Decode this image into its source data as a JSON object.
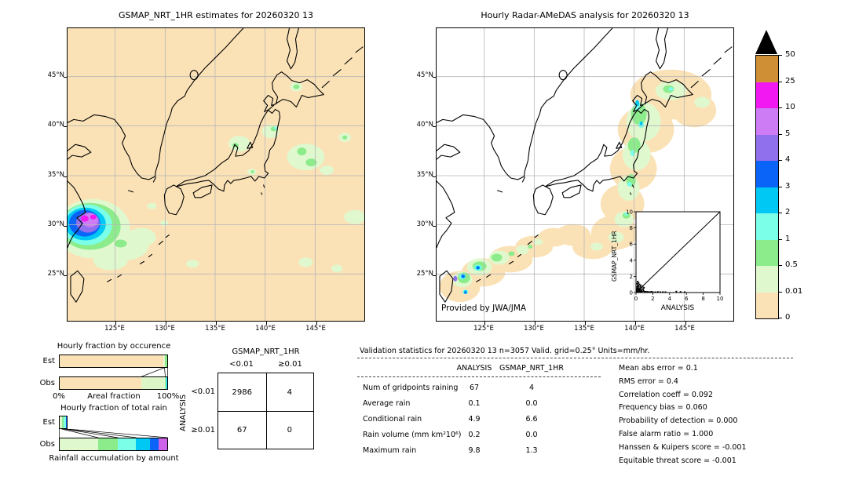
{
  "left_map": {
    "title": "GSMAP_NRT_1HR estimates for 20260320 13"
  },
  "right_map": {
    "title": "Hourly Radar-AMeDAS analysis for 20260320 13",
    "credit": "Provided by JWA/JMA"
  },
  "axes": {
    "lat_ticks": [
      "45°N",
      "40°N",
      "35°N",
      "30°N",
      "25°N"
    ],
    "lon_ticks": [
      "125°E",
      "130°E",
      "135°E",
      "140°E",
      "145°E"
    ]
  },
  "colorbar": {
    "units": "mm/hr",
    "tick_labels": [
      "50",
      "25",
      "10",
      "5",
      "4",
      "3",
      "2",
      "1",
      "0.5",
      "0.01",
      "0"
    ],
    "segment_colors_top_to_bottom": [
      "#CE8F35",
      "#F218F2",
      "#CE7CF6",
      "#9170EE",
      "#0A64F8",
      "#00C8F5",
      "#7CFFE8",
      "#8CEC8C",
      "#E0F8CE",
      "#FBE2B6"
    ],
    "over_color": "#000000"
  },
  "inset": {
    "xlabel": "ANALYSIS",
    "ylabel": "GSMAP_NRT_1HR",
    "tick_labels": [
      "0",
      "2",
      "4",
      "6",
      "8",
      "10"
    ]
  },
  "occurrence": {
    "title": "Hourly fraction by occurence",
    "row_labels": [
      "Est",
      "Obs"
    ],
    "x_min_label": "0%",
    "x_max_label": "100%",
    "xlabel": "Areal fraction",
    "est_segments": [
      {
        "color": "#FBE2B6",
        "pct": 96.3
      },
      {
        "color": "#E0F8CE",
        "pct": 1.7
      },
      {
        "color": "#8CEC8C",
        "pct": 2.0
      }
    ],
    "obs_segments": [
      {
        "color": "#FBE2B6",
        "pct": 76.0
      },
      {
        "color": "#DDF6C8",
        "pct": 21.5
      },
      {
        "color": "#8CEC8C",
        "pct": 1.2
      },
      {
        "color": "#7CFFE8",
        "pct": 0.6
      },
      {
        "color": "#00C8F5",
        "pct": 0.7
      }
    ]
  },
  "total_rain": {
    "title": "Hourly fraction of total rain",
    "row_labels": [
      "Est",
      "Obs"
    ],
    "xlabel": "Rainfall accumulation by amount",
    "est_segments": [
      {
        "color": "#E0F8CE",
        "pct": 33.0
      },
      {
        "color": "#8CEC8C",
        "pct": 28.0
      },
      {
        "color": "#7CFFE8",
        "pct": 23.0
      },
      {
        "color": "#00C8F5",
        "pct": 10.0
      },
      {
        "color": "#0A64F8",
        "pct": 6.0
      }
    ],
    "obs_segments": [
      {
        "color": "#E0F8CE",
        "pct": 36.0
      },
      {
        "color": "#8CEC8C",
        "pct": 18.0
      },
      {
        "color": "#7CFFE8",
        "pct": 17.0
      },
      {
        "color": "#00C8F5",
        "pct": 13.0
      },
      {
        "color": "#0A64F8",
        "pct": 8.0
      },
      {
        "color": "#CC63E8",
        "pct": 8.0
      }
    ]
  },
  "contingency": {
    "col_group": "GSMAP_NRT_1HR",
    "row_group": "ANALYSIS",
    "col_labels": [
      "<0.01",
      "≥0.01"
    ],
    "row_labels": [
      "<0.01",
      "≥0.01"
    ],
    "values": [
      [
        "2986",
        "4"
      ],
      [
        "67",
        "0"
      ]
    ]
  },
  "validation": {
    "title": "Validation statistics for 20260320 13  n=3057 Valid. grid=0.25° Units=mm/hr.",
    "col_headers": [
      "ANALYSIS",
      "GSMAP_NRT_1HR"
    ],
    "rows": [
      {
        "label": "Num of gridpoints raining",
        "analysis": "67",
        "gsmap": "4"
      },
      {
        "label": "Average rain",
        "analysis": "0.1",
        "gsmap": "0.0"
      },
      {
        "label": "Conditional rain",
        "analysis": "4.9",
        "gsmap": "6.6"
      },
      {
        "label": "Rain volume (mm km²10⁶)",
        "analysis": "0.2",
        "gsmap": "0.0"
      },
      {
        "label": "Maximum rain",
        "analysis": "9.8",
        "gsmap": "1.3"
      }
    ],
    "scores": [
      {
        "label": "Mean abs error",
        "value": "0.1"
      },
      {
        "label": "RMS error",
        "value": "0.4"
      },
      {
        "label": "Correlation coeff",
        "value": "0.092"
      },
      {
        "label": "Frequency bias",
        "value": "0.060"
      },
      {
        "label": "Probability of detection",
        "value": "0.000"
      },
      {
        "label": "False alarm ratio",
        "value": "1.000"
      },
      {
        "label": "Hanssen & Kuipers score",
        "value": "-0.001"
      },
      {
        "label": "Equitable threat score",
        "value": "-0.001"
      }
    ]
  },
  "chart_data": [
    {
      "type": "heatmap",
      "name": "gsmap_precip_map",
      "title": "GSMAP_NRT_1HR estimates for 20260320 13",
      "units": "mm/hr",
      "lon_range": [
        120,
        150
      ],
      "lat_range": [
        22.5,
        48.5
      ],
      "contour_levels": [
        0,
        0.01,
        0.5,
        1,
        2,
        3,
        4,
        5,
        10,
        25,
        50
      ],
      "max_rain": 1.3,
      "raining_gridpoints": 4
    },
    {
      "type": "heatmap",
      "name": "radar_amedas_map",
      "title": "Hourly Radar-AMeDAS analysis for 20260320 13",
      "units": "mm/hr",
      "lon_range": [
        120,
        150
      ],
      "lat_range": [
        22.5,
        48.5
      ],
      "contour_levels": [
        0,
        0.01,
        0.5,
        1,
        2,
        3,
        4,
        5,
        10,
        25,
        50
      ],
      "max_rain": 9.8,
      "raining_gridpoints": 67
    },
    {
      "type": "scatter",
      "name": "inset_scatter",
      "xlabel": "ANALYSIS",
      "ylabel": "GSMAP_NRT_1HR",
      "xlim": [
        0,
        10
      ],
      "ylim": [
        0,
        10
      ],
      "diagonal": true,
      "points": [
        [
          0.05,
          0.1
        ],
        [
          0.1,
          0.05
        ],
        [
          0.15,
          0.2
        ],
        [
          0.2,
          0.1
        ],
        [
          0.25,
          0.05
        ],
        [
          0.3,
          0.15
        ],
        [
          0.1,
          0.3
        ],
        [
          0.2,
          0.25
        ],
        [
          0.05,
          0.4
        ],
        [
          0.15,
          0.5
        ],
        [
          0.3,
          0.35
        ],
        [
          0.4,
          0.2
        ],
        [
          0.5,
          0.1
        ],
        [
          0.45,
          0.3
        ],
        [
          0.6,
          0.15
        ],
        [
          0.35,
          0.5
        ],
        [
          0.25,
          0.6
        ],
        [
          0.5,
          0.45
        ],
        [
          0.65,
          0.3
        ],
        [
          0.7,
          0.1
        ],
        [
          0.15,
          0.7
        ],
        [
          0.3,
          0.8
        ],
        [
          0.5,
          0.7
        ],
        [
          0.2,
          0.9
        ],
        [
          0.4,
          1.0
        ],
        [
          0.15,
          1.1
        ],
        [
          0.3,
          1.2
        ],
        [
          0.2,
          1.35
        ],
        [
          0.55,
          0.9
        ],
        [
          0.7,
          0.6
        ],
        [
          0.85,
          0.4
        ],
        [
          0.9,
          0.2
        ],
        [
          1.0,
          0.1
        ],
        [
          1.1,
          0.05
        ],
        [
          0.8,
          0.8
        ],
        [
          0.95,
          0.6
        ],
        [
          1.2,
          0.1
        ],
        [
          1.4,
          0.08
        ],
        [
          1.6,
          0.05
        ],
        [
          1.8,
          0.1
        ],
        [
          2.0,
          0.06
        ],
        [
          2.3,
          0.05
        ],
        [
          2.6,
          0.08
        ],
        [
          2.9,
          0.05
        ],
        [
          3.2,
          0.06
        ],
        [
          3.5,
          0.05
        ],
        [
          4.8,
          0.12
        ],
        [
          5.3,
          0.08
        ],
        [
          5.8,
          0.05
        ]
      ]
    },
    {
      "type": "bar",
      "name": "hourly_fraction_by_occurrence",
      "categories": [
        "Est",
        "Obs"
      ],
      "series": [
        {
          "name": "Est",
          "values_pct": [
            96.3,
            1.7,
            2.0
          ]
        },
        {
          "name": "Obs",
          "values_pct": [
            76.0,
            21.5,
            1.2,
            0.6,
            0.7
          ]
        }
      ],
      "xlabel": "Areal fraction",
      "xlim_labels": [
        "0%",
        "100%"
      ]
    },
    {
      "type": "bar",
      "name": "hourly_fraction_of_total_rain",
      "categories": [
        "Est",
        "Obs"
      ],
      "series": [
        {
          "name": "Est",
          "total_pct": 7.8,
          "values_pct": [
            2.6,
            2.2,
            1.8,
            0.8,
            0.4
          ]
        },
        {
          "name": "Obs",
          "total_pct": 100,
          "values_pct": [
            36,
            18,
            17,
            13,
            8,
            8
          ]
        }
      ],
      "xlabel": "Rainfall accumulation by amount"
    },
    {
      "type": "table",
      "name": "contingency_table",
      "col_group": "GSMAP_NRT_1HR",
      "row_group": "ANALYSIS",
      "columns": [
        "<0.01",
        "≥0.01"
      ],
      "rows": [
        "<0.01",
        "≥0.01"
      ],
      "values": [
        [
          2986,
          4
        ],
        [
          67,
          0
        ]
      ]
    },
    {
      "type": "table",
      "name": "validation_statistics",
      "title": "Validation statistics for 20260320 13  n=3057 Valid. grid=0.25° Units=mm/hr.",
      "columns": [
        "ANALYSIS",
        "GSMAP_NRT_1HR"
      ],
      "rows": [
        [
          "Num of gridpoints raining",
          67,
          4
        ],
        [
          "Average rain",
          0.1,
          0.0
        ],
        [
          "Conditional rain",
          4.9,
          6.6
        ],
        [
          "Rain volume (mm km²10⁶)",
          0.2,
          0.0
        ],
        [
          "Maximum rain",
          9.8,
          1.3
        ]
      ],
      "scores": {
        "Mean abs error": 0.1,
        "RMS error": 0.4,
        "Correlation coeff": 0.092,
        "Frequency bias": 0.06,
        "Probability of detection": 0.0,
        "False alarm ratio": 1.0,
        "Hanssen & Kuipers score": -0.001,
        "Equitable threat score": -0.001
      }
    }
  ]
}
